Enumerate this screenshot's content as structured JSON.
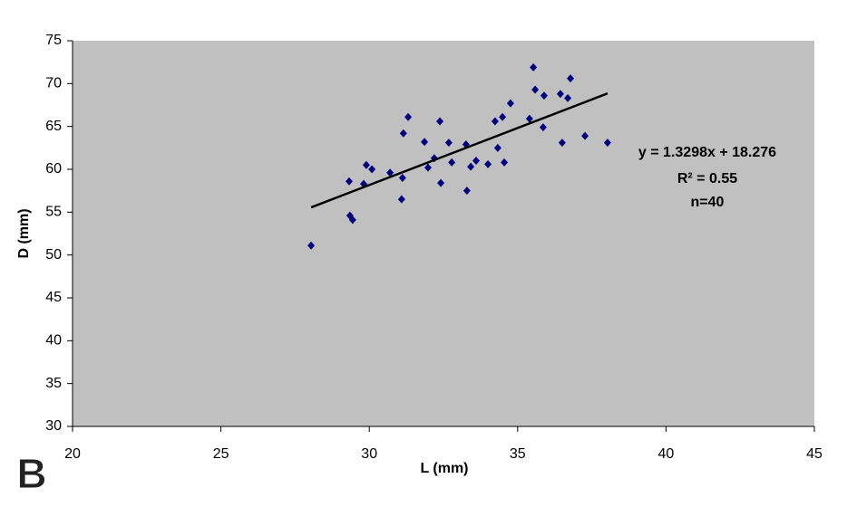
{
  "chart_data": {
    "type": "scatter",
    "panel_label": "B",
    "x_label": "L (mm)",
    "y_label": "D (mm)",
    "x": [
      28.04,
      29.32,
      29.35,
      29.44,
      29.81,
      29.9,
      30.09,
      30.7,
      31.12,
      31.09,
      31.15,
      31.31,
      31.86,
      31.98,
      32.19,
      32.38,
      32.41,
      32.68,
      32.78,
      33.26,
      33.29,
      33.42,
      33.6,
      34.0,
      34.24,
      34.33,
      34.49,
      34.55,
      34.76,
      35.4,
      35.53,
      35.59,
      35.86,
      35.89,
      36.44,
      36.5,
      36.69,
      36.78,
      37.27,
      38.03
    ],
    "values": [
      51.1,
      58.6,
      54.6,
      54.1,
      58.3,
      60.5,
      60.0,
      59.6,
      59.0,
      56.5,
      64.2,
      66.1,
      63.2,
      60.2,
      61.3,
      65.6,
      58.4,
      63.1,
      60.8,
      62.9,
      57.5,
      60.3,
      61.0,
      60.6,
      65.6,
      62.5,
      66.1,
      60.8,
      67.7,
      65.9,
      71.9,
      69.3,
      64.9,
      68.6,
      68.8,
      63.1,
      68.3,
      70.6,
      63.9,
      63.1
    ],
    "color": "#000080",
    "trendline": {
      "x": [
        28.04,
        38.03
      ],
      "values": [
        55.56,
        68.85
      ],
      "color": "#000000"
    },
    "annotations": [
      "y = 1.3298x + 18.276",
      "R² = 0.55",
      "n=40"
    ],
    "xlim": [
      20,
      45
    ],
    "xticks": [
      20,
      25,
      30,
      35,
      40,
      45
    ],
    "ylim": [
      30,
      75
    ],
    "yticks": [
      30,
      35,
      40,
      45,
      50,
      55,
      60,
      65,
      70,
      75
    ],
    "grid": false,
    "plot_background": "#c0c0c0"
  }
}
